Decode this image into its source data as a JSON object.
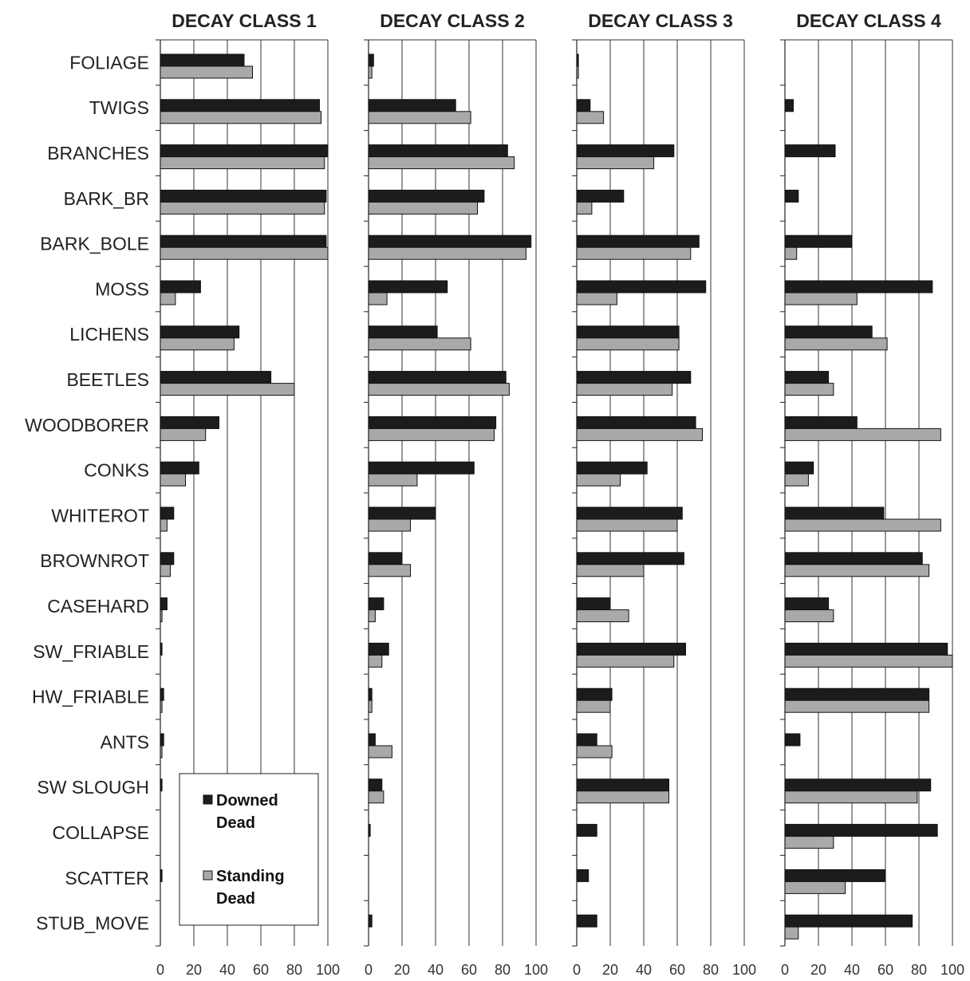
{
  "chart_data": {
    "type": "bar",
    "orientation": "horizontal",
    "categories": [
      "FOLIAGE",
      "TWIGS",
      "BRANCHES",
      "BARK_BR",
      "BARK_BOLE",
      "MOSS",
      "LICHENS",
      "BEETLES",
      "WOODBORER",
      "CONKS",
      "WHITEROT",
      "BROWNROT",
      "CASEHARD",
      "SW_FRIABLE",
      "HW_FRIABLE",
      "ANTS",
      "SW SLOUGH",
      "COLLAPSE",
      "SCATTER",
      "STUB_MOVE"
    ],
    "xlim": [
      0,
      100
    ],
    "xticks": [
      "0",
      "20",
      "40",
      "60",
      "80",
      "100"
    ],
    "grid": true,
    "legend": {
      "position": "bottom-left of first panel",
      "entries": [
        {
          "line1": "Downed",
          "line2": "Dead",
          "color": "#1c1c1c"
        },
        {
          "line1": "Standing",
          "line2": "Dead",
          "color": "#a9a9a9"
        }
      ]
    },
    "panels": [
      {
        "title": "DECAY CLASS 1",
        "series": [
          {
            "name": "Downed Dead",
            "values": [
              50,
              95,
              100,
              99,
              99,
              24,
              47,
              66,
              35,
              23,
              8,
              8,
              4,
              1,
              2,
              2,
              1,
              0,
              1,
              0
            ]
          },
          {
            "name": "Standing Dead",
            "values": [
              55,
              96,
              98,
              98,
              100,
              9,
              44,
              80,
              27,
              15,
              4,
              6,
              1,
              0,
              1,
              1,
              0,
              0,
              0,
              0
            ]
          }
        ]
      },
      {
        "title": "DECAY CLASS 2",
        "series": [
          {
            "name": "Downed Dead",
            "values": [
              3,
              52,
              83,
              69,
              97,
              47,
              41,
              82,
              76,
              63,
              40,
              20,
              9,
              12,
              2,
              4,
              8,
              1,
              0,
              2
            ]
          },
          {
            "name": "Standing Dead",
            "values": [
              2,
              61,
              87,
              65,
              94,
              11,
              61,
              84,
              75,
              29,
              25,
              25,
              4,
              8,
              2,
              14,
              9,
              0,
              0,
              0
            ]
          }
        ]
      },
      {
        "title": "DECAY CLASS 3",
        "series": [
          {
            "name": "Downed Dead",
            "values": [
              1,
              8,
              58,
              28,
              73,
              77,
              61,
              68,
              71,
              42,
              63,
              64,
              20,
              65,
              21,
              12,
              55,
              12,
              7,
              12
            ]
          },
          {
            "name": "Standing Dead",
            "values": [
              1,
              16,
              46,
              9,
              68,
              24,
              61,
              57,
              75,
              26,
              60,
              40,
              31,
              58,
              20,
              21,
              55,
              0,
              0,
              0
            ]
          }
        ]
      },
      {
        "title": "DECAY CLASS 4",
        "series": [
          {
            "name": "Downed Dead",
            "values": [
              0,
              5,
              30,
              8,
              40,
              88,
              52,
              26,
              43,
              17,
              59,
              82,
              26,
              97,
              86,
              9,
              87,
              91,
              60,
              76
            ]
          },
          {
            "name": "Standing Dead",
            "values": [
              0,
              0,
              0,
              0,
              7,
              43,
              61,
              29,
              93,
              14,
              93,
              86,
              29,
              100,
              86,
              0,
              79,
              29,
              36,
              8
            ]
          }
        ]
      }
    ]
  }
}
